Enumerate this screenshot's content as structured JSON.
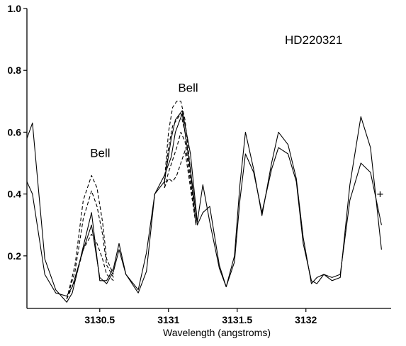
{
  "chart_data": {
    "type": "line",
    "title": "HD220321",
    "xlabel": "Wavelength (angstroms)",
    "ylabel": "",
    "xlim": [
      3129.97,
      3132.62
    ],
    "ylim": [
      0.03,
      1.0
    ],
    "xticks": [
      3130.5,
      3131,
      3131.5,
      3132
    ],
    "xtick_labels": [
      "3130.5",
      "3131",
      "3131.5",
      "3132"
    ],
    "yticks": [
      0.2,
      0.4,
      0.6,
      0.8,
      1.0
    ],
    "ytick_labels": [
      "0.2",
      "0.4",
      "0.6",
      "0.8",
      "1.0"
    ],
    "grid": false,
    "annotations": [
      {
        "text": "Bell",
        "x": 3130.43,
        "y": 0.52
      },
      {
        "text": "Bell",
        "x": 3131.07,
        "y": 0.73
      }
    ],
    "series": [
      {
        "style": "solid",
        "x": [
          3129.97,
          3130.01,
          3130.1,
          3130.18,
          3130.26,
          3130.3,
          3130.38,
          3130.44,
          3130.5,
          3130.55,
          3130.6,
          3130.64,
          3130.69,
          3130.78,
          3130.84,
          3130.9,
          3130.97,
          3131.02,
          3131.05,
          3131.1,
          3131.16,
          3131.21,
          3131.25,
          3131.3,
          3131.37,
          3131.42,
          3131.48,
          3131.52,
          3131.56,
          3131.62,
          3131.68,
          3131.75,
          3131.8,
          3131.87,
          3131.93,
          3131.98,
          3132.04,
          3132.08,
          3132.13,
          3132.19,
          3132.25,
          3132.32,
          3132.4,
          3132.47,
          3132.55
        ],
        "y": [
          0.44,
          0.4,
          0.14,
          0.08,
          0.07,
          0.1,
          0.22,
          0.3,
          0.13,
          0.11,
          0.15,
          0.22,
          0.14,
          0.08,
          0.15,
          0.4,
          0.46,
          0.52,
          0.6,
          0.66,
          0.48,
          0.3,
          0.34,
          0.36,
          0.17,
          0.1,
          0.18,
          0.38,
          0.53,
          0.47,
          0.34,
          0.48,
          0.55,
          0.53,
          0.44,
          0.24,
          0.12,
          0.11,
          0.14,
          0.13,
          0.14,
          0.38,
          0.5,
          0.47,
          0.3
        ]
      },
      {
        "style": "solid",
        "x": [
          3129.97,
          3130.01,
          3130.1,
          3130.18,
          3130.26,
          3130.3,
          3130.38,
          3130.44,
          3130.5,
          3130.55,
          3130.6,
          3130.64,
          3130.69,
          3130.78,
          3130.84,
          3130.9,
          3130.97,
          3131.02,
          3131.05,
          3131.1,
          3131.16,
          3131.21,
          3131.25,
          3131.3,
          3131.37,
          3131.42,
          3131.48,
          3131.52,
          3131.56,
          3131.62,
          3131.68,
          3131.75,
          3131.8,
          3131.87,
          3131.93,
          3131.98,
          3132.04,
          3132.08,
          3132.13,
          3132.19,
          3132.25,
          3132.32,
          3132.4,
          3132.47,
          3132.55
        ],
        "y": [
          0.58,
          0.63,
          0.19,
          0.09,
          0.05,
          0.08,
          0.23,
          0.34,
          0.12,
          0.12,
          0.16,
          0.24,
          0.14,
          0.09,
          0.21,
          0.4,
          0.44,
          0.58,
          0.64,
          0.67,
          0.53,
          0.31,
          0.43,
          0.31,
          0.16,
          0.1,
          0.2,
          0.43,
          0.6,
          0.48,
          0.33,
          0.5,
          0.6,
          0.56,
          0.45,
          0.26,
          0.11,
          0.13,
          0.14,
          0.12,
          0.13,
          0.43,
          0.65,
          0.55,
          0.22
        ]
      },
      {
        "style": "dashed",
        "x": [
          3130.26,
          3130.32,
          3130.38,
          3130.44,
          3130.48,
          3130.52,
          3130.55,
          3130.6
        ],
        "y": [
          0.06,
          0.17,
          0.38,
          0.46,
          0.42,
          0.31,
          0.19,
          0.14
        ]
      },
      {
        "style": "dashed",
        "x": [
          3130.26,
          3130.32,
          3130.38,
          3130.44,
          3130.48,
          3130.52,
          3130.55,
          3130.6
        ],
        "y": [
          0.06,
          0.15,
          0.32,
          0.41,
          0.36,
          0.27,
          0.17,
          0.13
        ]
      },
      {
        "style": "dashed",
        "x": [
          3130.26,
          3130.32,
          3130.38,
          3130.44,
          3130.48,
          3130.52,
          3130.55,
          3130.6
        ],
        "y": [
          0.06,
          0.12,
          0.22,
          0.27,
          0.24,
          0.19,
          0.14,
          0.12
        ]
      },
      {
        "style": "dashed",
        "x": [
          3130.97,
          3131.0,
          3131.03,
          3131.06,
          3131.09,
          3131.12,
          3131.16,
          3131.2
        ],
        "y": [
          0.44,
          0.6,
          0.68,
          0.7,
          0.7,
          0.64,
          0.48,
          0.3
        ]
      },
      {
        "style": "dashed",
        "x": [
          3130.97,
          3131.0,
          3131.03,
          3131.06,
          3131.09,
          3131.12,
          3131.16,
          3131.2
        ],
        "y": [
          0.43,
          0.55,
          0.62,
          0.64,
          0.66,
          0.6,
          0.46,
          0.3
        ]
      },
      {
        "style": "dashed",
        "x": [
          3130.97,
          3131.0,
          3131.03,
          3131.06,
          3131.09,
          3131.12,
          3131.16,
          3131.2
        ],
        "y": [
          0.42,
          0.47,
          0.51,
          0.55,
          0.6,
          0.57,
          0.44,
          0.3
        ]
      },
      {
        "style": "dashed",
        "x": [
          3130.97,
          3131.0,
          3131.03,
          3131.06,
          3131.09,
          3131.12,
          3131.16,
          3131.2
        ],
        "y": [
          0.42,
          0.45,
          0.44,
          0.46,
          0.5,
          0.54,
          0.42,
          0.3
        ]
      }
    ],
    "markers": [
      {
        "symbol": "+",
        "x": 3132.54,
        "y": 0.4
      }
    ]
  }
}
